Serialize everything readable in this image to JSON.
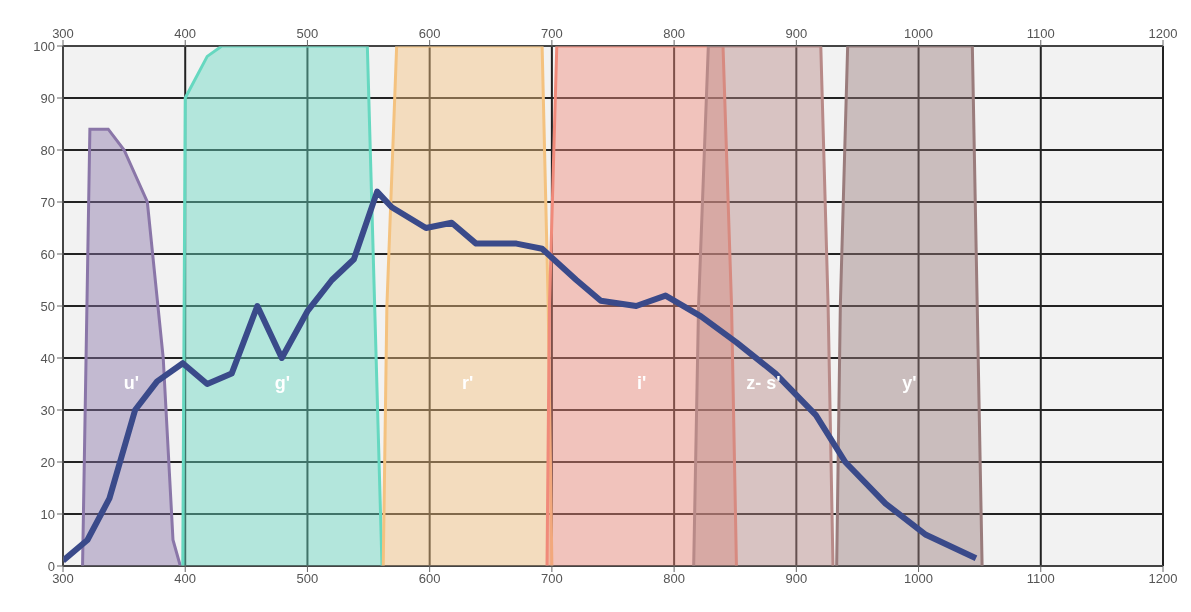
{
  "chart_data": {
    "type": "area",
    "grid": true,
    "xlim": [
      300,
      1200
    ],
    "xticks": [
      300,
      400,
      500,
      600,
      700,
      800,
      900,
      1000,
      1100,
      1200
    ],
    "x2lim": [
      300,
      1200
    ],
    "x2ticks": [
      300,
      400,
      500,
      600,
      700,
      800,
      900,
      1000,
      1100,
      1200
    ],
    "ylim": [
      0,
      100
    ],
    "yticks": [
      0,
      10,
      20,
      30,
      40,
      50,
      60,
      70,
      80,
      90,
      100
    ],
    "series": [
      {
        "name": "u'",
        "color": "#8a76a8",
        "x": [
          316,
          322,
          337,
          350,
          369,
          382,
          390,
          396
        ],
        "values": [
          0,
          84,
          84,
          80,
          70,
          40,
          5,
          0
        ]
      },
      {
        "name": "g'",
        "color": "#66d8c0",
        "x": [
          398,
          400,
          418,
          430,
          549,
          555,
          561
        ],
        "values": [
          0,
          90,
          98,
          100,
          100,
          50,
          0
        ]
      },
      {
        "name": "r'",
        "color": "#f4c27f",
        "x": [
          562,
          565,
          573,
          692,
          697,
          700
        ],
        "values": [
          0,
          50,
          100,
          100,
          50,
          0
        ]
      },
      {
        "name": "i'",
        "color": "#f08a7a",
        "x": [
          696,
          698,
          704,
          840,
          847,
          851
        ],
        "values": [
          0,
          50,
          100,
          100,
          50,
          0
        ]
      },
      {
        "name": "z- s'",
        "color": "#b88a88",
        "x": [
          816,
          820,
          828,
          920,
          926,
          930
        ],
        "values": [
          0,
          50,
          100,
          100,
          50,
          0
        ]
      },
      {
        "name": "y'",
        "color": "#9a7c7c",
        "x": [
          933,
          936,
          942,
          1044,
          1048,
          1052
        ],
        "values": [
          0,
          50,
          100,
          100,
          50,
          0
        ]
      },
      {
        "type": "line",
        "color": "#3a4a8a",
        "x": [
          300,
          320,
          338,
          359,
          377,
          398,
          418,
          438,
          459,
          479,
          500,
          520,
          538,
          557,
          569,
          597,
          618,
          638,
          671,
          692,
          720,
          740,
          769,
          793,
          822,
          851,
          883,
          916,
          940,
          973,
          1006,
          1047
        ],
        "values": [
          1,
          5,
          13,
          30,
          35.5,
          39,
          35,
          37,
          50,
          40,
          49,
          55,
          59,
          72,
          69,
          65,
          66,
          62,
          62,
          61,
          55,
          51,
          50,
          52,
          48,
          43,
          37,
          29,
          20,
          12,
          6,
          1.5
        ]
      }
    ]
  }
}
